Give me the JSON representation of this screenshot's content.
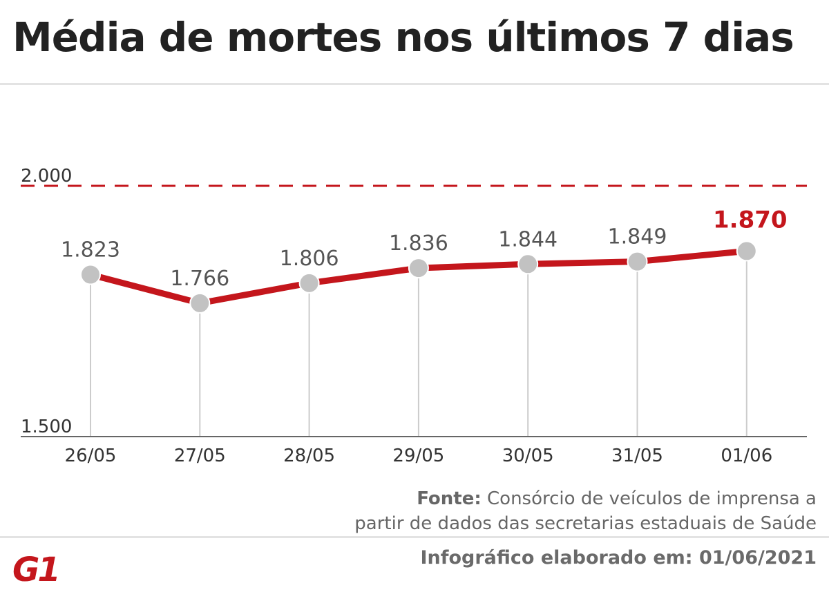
{
  "header": {
    "title": "Média de mortes nos últimos 7 dias"
  },
  "source": {
    "label": "Fonte:",
    "text_line1": "Consórcio de veículos de imprensa a",
    "text_line2": "partir de dados das secretarias estaduais de Saúde"
  },
  "footer": {
    "date_text": "Infográfico elaborado em: 01/06/2021",
    "logo_text": "G1"
  },
  "colors": {
    "line": "#c4161c",
    "highlight_label": "#c4161c",
    "marker": "#c2c2c2",
    "drop_line": "#cccccc",
    "axis": "#666666",
    "text": "#555555"
  },
  "chart_data": {
    "type": "line",
    "title": "Média de mortes nos últimos 7 dias",
    "categories": [
      "26/05",
      "27/05",
      "28/05",
      "29/05",
      "30/05",
      "31/05",
      "01/06"
    ],
    "values": [
      1823,
      1766,
      1806,
      1836,
      1844,
      1849,
      1870
    ],
    "value_labels": [
      "1.823",
      "1.766",
      "1.806",
      "1.836",
      "1.844",
      "1.849",
      "1.870"
    ],
    "highlight_index": 6,
    "ylim": [
      1500,
      2000
    ],
    "y_ticks": [
      {
        "value": 1500,
        "label": "1.500"
      },
      {
        "value": 2000,
        "label": "2.000"
      }
    ],
    "reference_line": {
      "value": 2000,
      "style": "dashed"
    },
    "grid": false,
    "legend": "none"
  }
}
